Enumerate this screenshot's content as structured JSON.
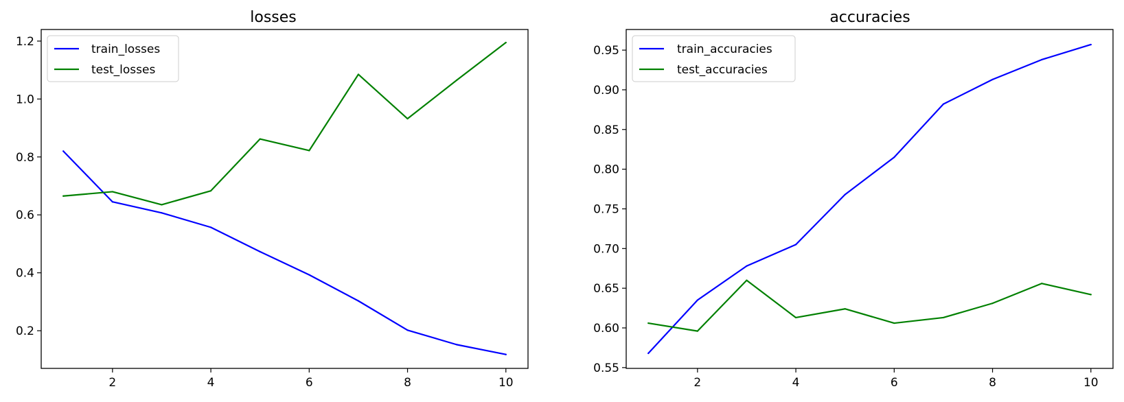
{
  "chart_data": [
    {
      "type": "line",
      "title": "losses",
      "xlabel": "",
      "ylabel": "",
      "x": [
        1,
        2,
        3,
        4,
        5,
        6,
        7,
        8,
        9,
        10
      ],
      "xlim": [
        0.55,
        10.45
      ],
      "ylim": [
        0.07,
        1.24
      ],
      "xticks": [
        2,
        4,
        6,
        8,
        10
      ],
      "yticks": [
        0.2,
        0.4,
        0.6,
        0.8,
        1.0,
        1.2
      ],
      "ytick_labels": [
        "0.2",
        "0.4",
        "0.6",
        "0.8",
        "1.0",
        "1.2"
      ],
      "grid": false,
      "legend_position": "top-left",
      "series": [
        {
          "name": "train_losses",
          "color": "#0000ff",
          "values": [
            0.82,
            0.645,
            0.607,
            0.557,
            0.473,
            0.393,
            0.303,
            0.202,
            0.152,
            0.118
          ]
        },
        {
          "name": "test_losses",
          "color": "#008000",
          "values": [
            0.665,
            0.68,
            0.635,
            0.683,
            0.862,
            0.822,
            1.085,
            0.932,
            1.065,
            1.195
          ]
        }
      ]
    },
    {
      "type": "line",
      "title": "accuracies",
      "xlabel": "",
      "ylabel": "",
      "x": [
        1,
        2,
        3,
        4,
        5,
        6,
        7,
        8,
        9,
        10
      ],
      "xlim": [
        0.55,
        10.45
      ],
      "ylim": [
        0.549,
        0.976
      ],
      "xticks": [
        2,
        4,
        6,
        8,
        10
      ],
      "yticks": [
        0.55,
        0.6,
        0.65,
        0.7,
        0.75,
        0.8,
        0.85,
        0.9,
        0.95
      ],
      "ytick_labels": [
        "0.55",
        "0.60",
        "0.65",
        "0.70",
        "0.75",
        "0.80",
        "0.85",
        "0.90",
        "0.95"
      ],
      "grid": false,
      "legend_position": "top-left",
      "series": [
        {
          "name": "train_accuracies",
          "color": "#0000ff",
          "values": [
            0.568,
            0.635,
            0.678,
            0.705,
            0.768,
            0.815,
            0.882,
            0.913,
            0.938,
            0.957
          ]
        },
        {
          "name": "test_accuracies",
          "color": "#008000",
          "values": [
            0.606,
            0.596,
            0.66,
            0.613,
            0.624,
            0.606,
            0.613,
            0.631,
            0.656,
            0.642
          ]
        }
      ]
    }
  ]
}
